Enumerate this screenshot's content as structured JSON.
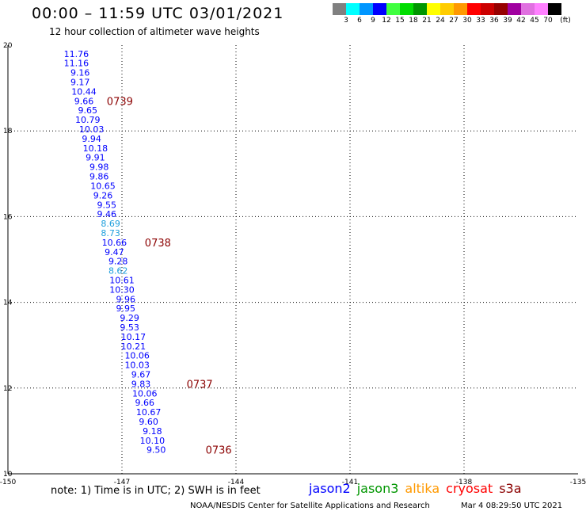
{
  "title": "00:00 – 11:59 UTC 03/01/2021",
  "subtitle": "12 hour collection of altimeter wave heights",
  "colorbar": {
    "unit": "(ft)",
    "colors": [
      "#808080",
      "#00ffff",
      "#0096ff",
      "#0000ff",
      "#40ff40",
      "#00dd00",
      "#009600",
      "#ffff00",
      "#ffcc00",
      "#ff9900",
      "#ff0000",
      "#cc0000",
      "#960000",
      "#a000a0",
      "#e070e0",
      "#ff80ff",
      "#000000"
    ],
    "labels": [
      "3",
      "6",
      "9",
      "12",
      "15",
      "18",
      "21",
      "24",
      "27",
      "30",
      "33",
      "36",
      "39",
      "42",
      "45",
      "70"
    ]
  },
  "chart_data": {
    "type": "scatter",
    "xlim": [
      -150,
      -135
    ],
    "ylim": [
      10,
      20
    ],
    "x_ticks": [
      "-150",
      "-147",
      "-144",
      "-141",
      "-138",
      "-135"
    ],
    "y_ticks": [
      "10",
      "12",
      "14",
      "16",
      "18",
      "20"
    ],
    "grid": true,
    "points": [
      {
        "x": -148.2,
        "y": 19.8,
        "value": "11.76",
        "color": "#0000ff"
      },
      {
        "x": -148.2,
        "y": 19.58,
        "value": "11.16",
        "color": "#0000ff"
      },
      {
        "x": -148.1,
        "y": 19.36,
        "value": "9.16",
        "color": "#0000ff"
      },
      {
        "x": -148.1,
        "y": 19.14,
        "value": "9.17",
        "color": "#0000ff"
      },
      {
        "x": -148.0,
        "y": 18.92,
        "value": "10.44",
        "color": "#0000ff"
      },
      {
        "x": -148.0,
        "y": 18.7,
        "value": "9.66",
        "color": "#0000ff"
      },
      {
        "x": -147.9,
        "y": 18.48,
        "value": "9.65",
        "color": "#0000ff"
      },
      {
        "x": -147.9,
        "y": 18.26,
        "value": "10.79",
        "color": "#0000ff"
      },
      {
        "x": -147.8,
        "y": 18.04,
        "value": "10.03",
        "color": "#0000ff"
      },
      {
        "x": -147.8,
        "y": 17.82,
        "value": "9.94",
        "color": "#0000ff"
      },
      {
        "x": -147.7,
        "y": 17.6,
        "value": "10.18",
        "color": "#0000ff"
      },
      {
        "x": -147.7,
        "y": 17.38,
        "value": "9.91",
        "color": "#0000ff"
      },
      {
        "x": -147.6,
        "y": 17.16,
        "value": "9.98",
        "color": "#0000ff"
      },
      {
        "x": -147.6,
        "y": 16.94,
        "value": "9.86",
        "color": "#0000ff"
      },
      {
        "x": -147.5,
        "y": 16.72,
        "value": "10.65",
        "color": "#0000ff"
      },
      {
        "x": -147.5,
        "y": 16.5,
        "value": "9.26",
        "color": "#0000ff"
      },
      {
        "x": -147.4,
        "y": 16.28,
        "value": "9.55",
        "color": "#0000ff"
      },
      {
        "x": -147.4,
        "y": 16.06,
        "value": "9.46",
        "color": "#0000ff"
      },
      {
        "x": -147.3,
        "y": 15.84,
        "value": "8.69",
        "color": "#1e9fdc"
      },
      {
        "x": -147.3,
        "y": 15.62,
        "value": "8.73",
        "color": "#1e9fdc"
      },
      {
        "x": -147.2,
        "y": 15.4,
        "value": "10.66",
        "color": "#0000ff"
      },
      {
        "x": -147.2,
        "y": 15.18,
        "value": "9.47",
        "color": "#0000ff"
      },
      {
        "x": -147.1,
        "y": 14.96,
        "value": "9.28",
        "color": "#0000ff"
      },
      {
        "x": -147.1,
        "y": 14.74,
        "value": "8.62",
        "color": "#1e9fdc"
      },
      {
        "x": -147.0,
        "y": 14.52,
        "value": "10.61",
        "color": "#0000ff"
      },
      {
        "x": -147.0,
        "y": 14.3,
        "value": "10.30",
        "color": "#0000ff"
      },
      {
        "x": -146.9,
        "y": 14.08,
        "value": "9.96",
        "color": "#0000ff"
      },
      {
        "x": -146.9,
        "y": 13.86,
        "value": "9.95",
        "color": "#0000ff"
      },
      {
        "x": -146.8,
        "y": 13.64,
        "value": "9.29",
        "color": "#0000ff"
      },
      {
        "x": -146.8,
        "y": 13.42,
        "value": "9.53",
        "color": "#0000ff"
      },
      {
        "x": -146.7,
        "y": 13.2,
        "value": "10.17",
        "color": "#0000ff"
      },
      {
        "x": -146.7,
        "y": 12.98,
        "value": "10.21",
        "color": "#0000ff"
      },
      {
        "x": -146.6,
        "y": 12.76,
        "value": "10.06",
        "color": "#0000ff"
      },
      {
        "x": -146.6,
        "y": 12.54,
        "value": "10.03",
        "color": "#0000ff"
      },
      {
        "x": -146.5,
        "y": 12.32,
        "value": "9.67",
        "color": "#0000ff"
      },
      {
        "x": -146.5,
        "y": 12.1,
        "value": "9.83",
        "color": "#0000ff"
      },
      {
        "x": -146.4,
        "y": 11.88,
        "value": "10.06",
        "color": "#0000ff"
      },
      {
        "x": -146.4,
        "y": 11.66,
        "value": "9.66",
        "color": "#0000ff"
      },
      {
        "x": -146.3,
        "y": 11.44,
        "value": "10.67",
        "color": "#0000ff"
      },
      {
        "x": -146.3,
        "y": 11.22,
        "value": "9.60",
        "color": "#0000ff"
      },
      {
        "x": -146.2,
        "y": 11.0,
        "value": "9.18",
        "color": "#0000ff"
      },
      {
        "x": -146.2,
        "y": 10.78,
        "value": "10.10",
        "color": "#0000ff"
      },
      {
        "x": -146.1,
        "y": 10.56,
        "value": "9.50",
        "color": "#0000ff"
      }
    ],
    "time_labels": [
      {
        "x": -147.4,
        "y": 18.7,
        "text": "0739"
      },
      {
        "x": -146.4,
        "y": 15.4,
        "text": "0738"
      },
      {
        "x": -145.3,
        "y": 12.1,
        "text": "0737"
      },
      {
        "x": -144.8,
        "y": 10.56,
        "text": "0736"
      }
    ],
    "time_label_color": "#8b0000"
  },
  "note": "note: 1) Time is in UTC; 2) SWH is in feet",
  "satellites": [
    {
      "name": "jason2",
      "color": "#0000ff"
    },
    {
      "name": "jason3",
      "color": "#009600"
    },
    {
      "name": "altika",
      "color": "#ff9900"
    },
    {
      "name": "cryosat",
      "color": "#ff0000"
    },
    {
      "name": "s3a",
      "color": "#8b0000"
    }
  ],
  "credit": "NOAA/NESDIS Center for Satellite Applications and Research",
  "timestamp": "Mar  4 08:29:50 UTC 2021"
}
